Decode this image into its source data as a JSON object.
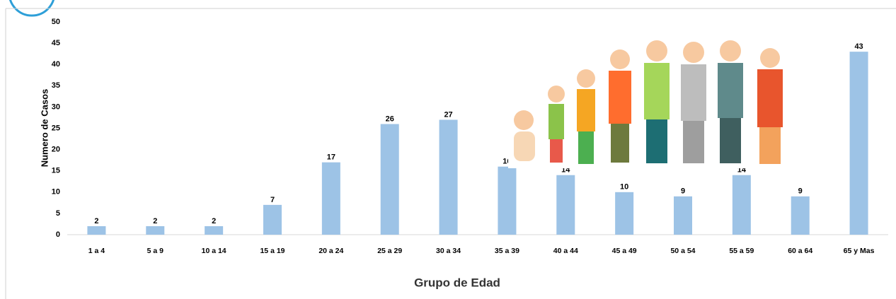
{
  "chart_data": {
    "type": "bar",
    "x_label": "Grupo de Edad",
    "y_label": "Numero de Casos",
    "categories": [
      "1 a 4",
      "5 a 9",
      "10 a 14",
      "15 a 19",
      "20 a 24",
      "25 a 29",
      "30 a 34",
      "35 a 39",
      "40 a 44",
      "45 a 49",
      "50 a 54",
      "55 a 59",
      "60 a 64",
      "65 y Mas"
    ],
    "values": [
      2,
      2,
      2,
      7,
      17,
      26,
      27,
      16,
      14,
      10,
      9,
      14,
      9,
      43
    ],
    "color": "#9dc3e6",
    "ylim": [
      0,
      50
    ],
    "yticks": [
      0,
      5,
      10,
      15,
      20,
      25,
      30,
      35,
      40,
      45,
      50
    ],
    "grid": false
  }
}
